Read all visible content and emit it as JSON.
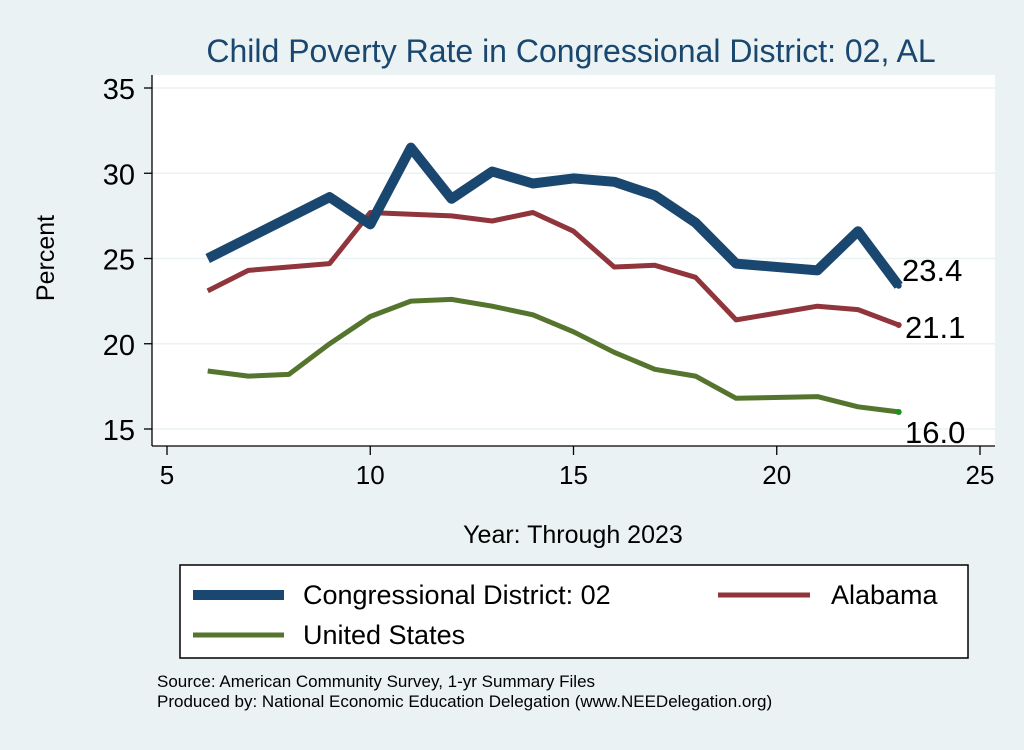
{
  "chart_data": {
    "type": "line",
    "title": "Child Poverty Rate in Congressional District:  02, AL",
    "xlabel": "Year: Through 2023",
    "ylabel": "Percent",
    "xlim": [
      5,
      25
    ],
    "ylim": [
      15,
      35
    ],
    "xticks": [
      5,
      10,
      15,
      20,
      25
    ],
    "yticks": [
      15,
      20,
      25,
      30,
      35
    ],
    "grid": true,
    "series": [
      {
        "name": "Congressional District:  02",
        "color": "#1a476f",
        "x": [
          6,
          9,
          10,
          11,
          12,
          13,
          14,
          15,
          16,
          17,
          18,
          19,
          21,
          22,
          23
        ],
        "values": [
          25.0,
          28.6,
          27.0,
          31.5,
          28.5,
          30.1,
          29.4,
          29.7,
          29.5,
          28.7,
          27.1,
          24.7,
          24.3,
          26.6,
          23.4
        ],
        "end_label": "23.4"
      },
      {
        "name": "Alabama",
        "color": "#90353b",
        "x": [
          6,
          7,
          8,
          9,
          10,
          11,
          12,
          13,
          14,
          15,
          16,
          17,
          18,
          19,
          21,
          22,
          23
        ],
        "values": [
          23.1,
          24.3,
          24.5,
          24.7,
          27.7,
          27.6,
          27.5,
          27.2,
          27.7,
          26.6,
          24.5,
          24.6,
          23.9,
          21.4,
          22.2,
          22.0,
          21.1
        ],
        "end_label": "21.1"
      },
      {
        "name": "United States",
        "color": "#55752f",
        "x": [
          6,
          7,
          8,
          9,
          10,
          11,
          12,
          13,
          14,
          15,
          16,
          17,
          18,
          19,
          21,
          22,
          23
        ],
        "values": [
          18.4,
          18.1,
          18.2,
          20.0,
          21.6,
          22.5,
          22.6,
          22.2,
          21.7,
          20.7,
          19.5,
          18.5,
          18.1,
          16.8,
          16.9,
          16.3,
          16.0
        ],
        "end_label": "16.0"
      }
    ],
    "legend": {
      "placement": "bottom",
      "entries": [
        "Congressional District:  02",
        "Alabama",
        "United States"
      ]
    }
  },
  "footer": {
    "source": "Source: American Community Survey, 1-yr Summary Files",
    "produced_by": "Produced by: National Economic Education Delegation (www.NEEDelegation.org)"
  }
}
